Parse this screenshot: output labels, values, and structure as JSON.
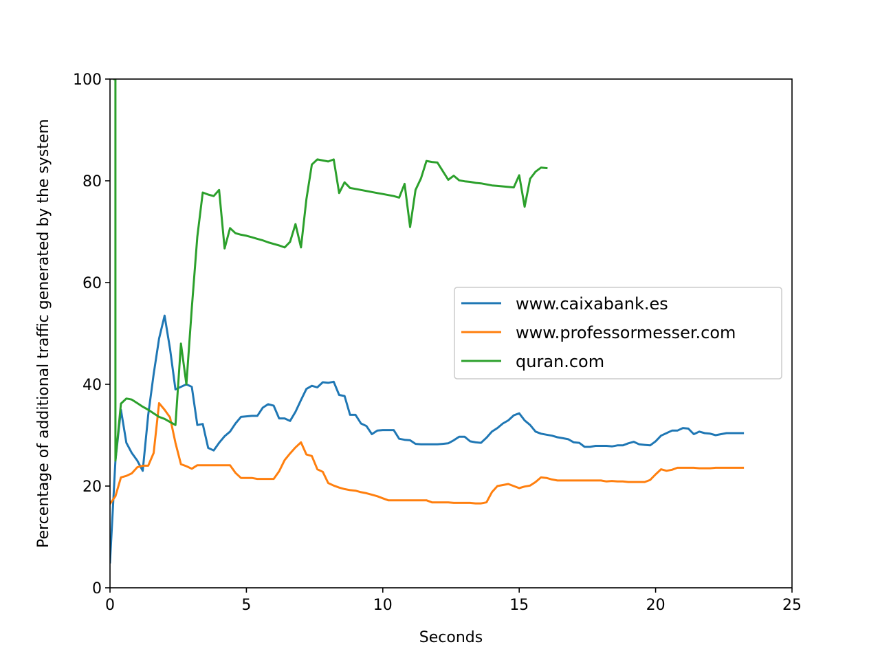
{
  "chart_data": {
    "type": "line",
    "title": "",
    "xlabel": "Seconds",
    "ylabel": "Percentage of additional traffic generated by the system",
    "xlim": [
      0,
      25
    ],
    "ylim": [
      0,
      100
    ],
    "xticks": [
      0,
      5,
      10,
      15,
      20,
      25
    ],
    "yticks": [
      0,
      20,
      40,
      60,
      80,
      100
    ],
    "grid": false,
    "legend_position": "center-right",
    "series": [
      {
        "name": "www.caixabank.es",
        "color": "#1f77b4",
        "x": [
          0,
          0.2,
          0.4,
          0.6,
          0.8,
          1.0,
          1.2,
          1.4,
          1.6,
          1.8,
          2.0,
          2.2,
          2.4,
          2.6,
          2.8,
          3.0,
          3.2,
          3.4,
          3.6,
          3.8,
          4.0,
          4.2,
          4.4,
          4.6,
          4.8,
          5.0,
          5.2,
          5.4,
          5.6,
          5.8,
          6.0,
          6.2,
          6.4,
          6.6,
          6.8,
          7.0,
          7.2,
          7.4,
          7.6,
          7.8,
          8.0,
          8.2,
          8.4,
          8.6,
          8.8,
          9.0,
          9.2,
          9.4,
          9.6,
          9.8,
          10.0,
          10.2,
          10.4,
          10.6,
          10.8,
          11.0,
          11.2,
          11.4,
          11.6,
          11.8,
          12.0,
          12.2,
          12.4,
          12.6,
          12.8,
          13.0,
          13.2,
          13.4,
          13.6,
          13.8,
          14.0,
          14.2,
          14.4,
          14.6,
          14.8,
          15.0,
          15.2,
          15.4,
          15.6,
          15.8,
          16.0,
          16.2,
          16.4,
          16.6,
          16.8,
          17.0,
          17.2,
          17.4,
          17.6,
          17.8,
          18.0,
          18.2,
          18.4,
          18.6,
          18.8,
          19.0,
          19.2,
          19.4,
          19.6,
          19.8,
          20.0,
          20.2,
          20.4,
          20.6,
          20.8,
          21.0,
          21.2,
          21.4,
          21.6,
          21.8,
          22.0,
          22.2,
          22.4,
          22.6,
          22.8,
          23.0,
          23.2
        ],
        "y": [
          5,
          25,
          35,
          28.5,
          26.5,
          25,
          23,
          34,
          42,
          49,
          53.5,
          47,
          39,
          39.5,
          40,
          39.5,
          32,
          32.2,
          27.5,
          27,
          28.5,
          29.8,
          30.7,
          32.3,
          33.6,
          33.7,
          33.8,
          33.8,
          35.4,
          36.1,
          35.8,
          33.3,
          33.3,
          32.8,
          34.6,
          36.9,
          39.1,
          39.7,
          39.4,
          40.4,
          40.3,
          40.5,
          37.9,
          37.7,
          34,
          34,
          32.3,
          31.8,
          30.2,
          30.9,
          31,
          31,
          31,
          29.3,
          29.1,
          29,
          28.3,
          28.2,
          28.2,
          28.2,
          28.2,
          28.3,
          28.4,
          29,
          29.7,
          29.7,
          28.8,
          28.6,
          28.5,
          29.5,
          30.7,
          31.4,
          32.3,
          32.9,
          33.9,
          34.3,
          32.9,
          32,
          30.7,
          30.3,
          30.1,
          29.9,
          29.6,
          29.4,
          29.2,
          28.6,
          28.5,
          27.7,
          27.7,
          27.9,
          27.9,
          27.9,
          27.8,
          28,
          28,
          28.4,
          28.7,
          28.2,
          28.1,
          28,
          28.8,
          29.9,
          30.4,
          30.9,
          30.9,
          31.4,
          31.3,
          30.2,
          30.7,
          30.4,
          30.3,
          30,
          30.2,
          30.4,
          30.4,
          30.4,
          30.4
        ]
      },
      {
        "name": "www.professormesser.com",
        "color": "#ff7f0e",
        "x": [
          0,
          0.2,
          0.4,
          0.6,
          0.8,
          1.0,
          1.2,
          1.4,
          1.6,
          1.8,
          2.0,
          2.2,
          2.4,
          2.6,
          2.8,
          3.0,
          3.2,
          3.4,
          3.6,
          3.8,
          4.0,
          4.2,
          4.4,
          4.6,
          4.8,
          5.0,
          5.2,
          5.4,
          5.6,
          5.8,
          6.0,
          6.2,
          6.4,
          6.6,
          6.8,
          7.0,
          7.2,
          7.4,
          7.6,
          7.8,
          8.0,
          8.2,
          8.4,
          8.6,
          8.8,
          9.0,
          9.2,
          9.4,
          9.6,
          9.8,
          10.0,
          10.2,
          10.4,
          10.6,
          10.8,
          11.0,
          11.2,
          11.4,
          11.6,
          11.8,
          12.0,
          12.2,
          12.4,
          12.6,
          12.8,
          13.0,
          13.2,
          13.4,
          13.6,
          13.8,
          14.0,
          14.2,
          14.4,
          14.6,
          14.8,
          15.0,
          15.2,
          15.4,
          15.6,
          15.8,
          16.0,
          16.2,
          16.4,
          16.6,
          16.8,
          17.0,
          17.2,
          17.4,
          17.6,
          17.8,
          18.0,
          18.2,
          18.4,
          18.6,
          18.8,
          19.0,
          19.2,
          19.4,
          19.6,
          19.8,
          20.0,
          20.2,
          20.4,
          20.6,
          20.8,
          21.0,
          21.2,
          21.4,
          21.6,
          21.8,
          22.0,
          22.2,
          22.4,
          22.6,
          22.8,
          23.0,
          23.2
        ],
        "y": [
          16.5,
          18,
          21.7,
          22,
          22.5,
          23.7,
          24,
          24,
          26.5,
          36.3,
          35,
          33.5,
          28.5,
          24.3,
          23.9,
          23.4,
          24.1,
          24.1,
          24.1,
          24.1,
          24.1,
          24.1,
          24.1,
          22.6,
          21.6,
          21.6,
          21.6,
          21.4,
          21.4,
          21.4,
          21.4,
          22.9,
          25.1,
          26.4,
          27.6,
          28.6,
          26.2,
          25.9,
          23.3,
          22.8,
          20.6,
          20.1,
          19.7,
          19.4,
          19.2,
          19.1,
          18.8,
          18.6,
          18.3,
          18,
          17.6,
          17.2,
          17.2,
          17.2,
          17.2,
          17.2,
          17.2,
          17.2,
          17.2,
          16.8,
          16.8,
          16.8,
          16.8,
          16.7,
          16.7,
          16.7,
          16.7,
          16.6,
          16.6,
          16.8,
          18.8,
          20,
          20.2,
          20.4,
          20,
          19.6,
          19.9,
          20.1,
          20.8,
          21.7,
          21.6,
          21.3,
          21.1,
          21.1,
          21.1,
          21.1,
          21.1,
          21.1,
          21.1,
          21.1,
          21.1,
          20.9,
          21,
          20.9,
          20.9,
          20.8,
          20.8,
          20.8,
          20.8,
          21.2,
          22.3,
          23.3,
          23,
          23.2,
          23.6,
          23.6,
          23.6,
          23.6,
          23.5,
          23.5,
          23.5,
          23.6,
          23.6,
          23.6,
          23.6,
          23.6,
          23.6
        ]
      },
      {
        "name": "quran.com",
        "color": "#2ca02c",
        "x": [
          0.15,
          0.2,
          0.2,
          0.4,
          0.6,
          0.8,
          1.0,
          1.2,
          1.4,
          1.6,
          1.8,
          2.0,
          2.2,
          2.4,
          2.6,
          2.8,
          3.0,
          3.2,
          3.4,
          3.6,
          3.8,
          4.0,
          4.2,
          4.4,
          4.6,
          4.8,
          5.0,
          5.2,
          5.4,
          5.6,
          5.8,
          6.0,
          6.2,
          6.4,
          6.6,
          6.8,
          7.0,
          7.2,
          7.4,
          7.6,
          7.8,
          8.0,
          8.2,
          8.4,
          8.6,
          8.8,
          9.0,
          9.2,
          9.4,
          9.6,
          9.8,
          10.0,
          10.2,
          10.4,
          10.6,
          10.8,
          11.0,
          11.2,
          11.4,
          11.6,
          11.8,
          12.0,
          12.2,
          12.4,
          12.6,
          12.8,
          13.0,
          13.2,
          13.4,
          13.6,
          13.8,
          14.0,
          14.2,
          14.4,
          14.6,
          14.8,
          15.0,
          15.2,
          15.4,
          15.6,
          15.8,
          16.0
        ],
        "y": [
          100,
          100,
          25,
          36.2,
          37.2,
          37,
          36.3,
          35.6,
          35,
          34.3,
          33.6,
          33.2,
          32.6,
          32,
          48,
          40,
          55,
          69,
          77.7,
          77.3,
          77,
          78.2,
          66.7,
          70.7,
          69.7,
          69.4,
          69.2,
          68.9,
          68.6,
          68.3,
          67.9,
          67.6,
          67.3,
          66.9,
          68,
          71.5,
          66.9,
          76.4,
          83.2,
          84.2,
          84,
          83.8,
          84.2,
          77.6,
          79.7,
          78.6,
          78.4,
          78.2,
          78,
          77.8,
          77.6,
          77.4,
          77.2,
          77,
          76.7,
          79.4,
          70.9,
          78.2,
          80.5,
          83.9,
          83.7,
          83.6,
          81.9,
          80.2,
          81,
          80.1,
          79.9,
          79.8,
          79.6,
          79.5,
          79.3,
          79.1,
          79,
          78.9,
          78.8,
          78.7,
          81.1,
          74.9,
          80.4,
          81.8,
          82.6,
          82.5
        ]
      }
    ]
  }
}
